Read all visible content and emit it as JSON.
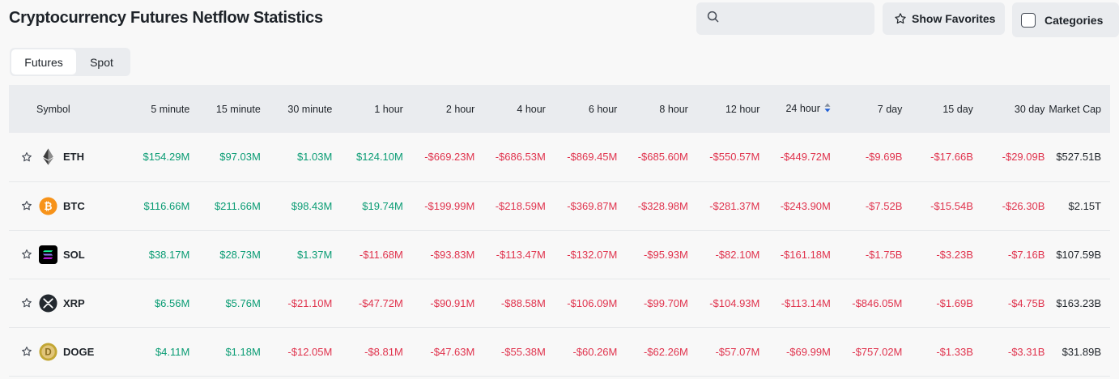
{
  "header": {
    "title": "Cryptocurrency Futures Netflow Statistics",
    "search_placeholder": "",
    "show_favorites": "Show Favorites",
    "categories": "Categories"
  },
  "tabs": [
    {
      "label": "Futures",
      "active": true
    },
    {
      "label": "Spot",
      "active": false
    }
  ],
  "table": {
    "columns": [
      "Symbol",
      "5 minute",
      "15 minute",
      "30 minute",
      "1 hour",
      "2 hour",
      "4 hour",
      "6 hour",
      "8 hour",
      "12 hour",
      "24 hour",
      "7 day",
      "15 day",
      "30 day",
      "Market Cap"
    ],
    "sorted_column": "24 hour",
    "rows": [
      {
        "symbol": "ETH",
        "icon": "eth-icon",
        "values": [
          "$154.29M",
          "$97.03M",
          "$1.03M",
          "$124.10M",
          "-$669.23M",
          "-$686.53M",
          "-$869.45M",
          "-$685.60M",
          "-$550.57M",
          "-$449.72M",
          "-$9.69B",
          "-$17.66B",
          "-$29.09B",
          "$527.51B"
        ]
      },
      {
        "symbol": "BTC",
        "icon": "btc-icon",
        "values": [
          "$116.66M",
          "$211.66M",
          "$98.43M",
          "$19.74M",
          "-$199.99M",
          "-$218.59M",
          "-$369.87M",
          "-$328.98M",
          "-$281.37M",
          "-$243.90M",
          "-$7.52B",
          "-$15.54B",
          "-$26.30B",
          "$2.15T"
        ]
      },
      {
        "symbol": "SOL",
        "icon": "sol-icon",
        "values": [
          "$38.17M",
          "$28.73M",
          "$1.37M",
          "-$11.68M",
          "-$93.83M",
          "-$113.47M",
          "-$132.07M",
          "-$95.93M",
          "-$82.10M",
          "-$161.18M",
          "-$1.75B",
          "-$3.23B",
          "-$7.16B",
          "$107.59B"
        ]
      },
      {
        "symbol": "XRP",
        "icon": "xrp-icon",
        "values": [
          "$6.56M",
          "$5.76M",
          "-$21.10M",
          "-$47.72M",
          "-$90.91M",
          "-$88.58M",
          "-$106.09M",
          "-$99.70M",
          "-$104.93M",
          "-$113.14M",
          "-$846.05M",
          "-$1.69B",
          "-$4.75B",
          "$163.23B"
        ]
      },
      {
        "symbol": "DOGE",
        "icon": "doge-icon",
        "values": [
          "$4.11M",
          "$1.18M",
          "-$12.05M",
          "-$8.81M",
          "-$47.63M",
          "-$55.38M",
          "-$60.26M",
          "-$62.26M",
          "-$57.07M",
          "-$69.99M",
          "-$757.02M",
          "-$1.33B",
          "-$3.31B",
          "$31.89B"
        ]
      }
    ]
  },
  "colors": {
    "positive": "#0a9c74",
    "negative": "#e0334d",
    "btc": "#f7931a",
    "eth": "#3c3c3d",
    "sol": "#000000",
    "xrp": "#23292f",
    "doge": "#c2a633"
  }
}
